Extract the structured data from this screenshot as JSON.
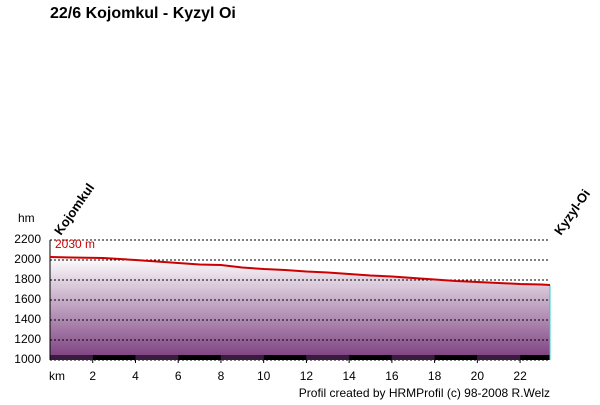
{
  "chart_data": {
    "type": "area",
    "title": "22/6 Kojomkul - Kyzyl Oi",
    "x_label": "km",
    "y_label": "hm",
    "credit": "Profil created by HRMProfil (c) 98-2008 R.Welz",
    "locations": [
      {
        "x": 0,
        "label": "Kojomkul"
      },
      {
        "x": 23.4,
        "label": "Kyzyl-Oi"
      }
    ],
    "x": [
      0,
      1,
      2.5,
      4,
      5,
      6,
      7,
      8,
      9,
      10,
      11,
      12,
      13,
      14,
      15,
      16,
      17,
      18,
      19,
      20,
      21,
      22,
      23,
      23.4
    ],
    "series": [
      {
        "name": "Elevation",
        "color": "#cc0000",
        "values": [
          2030,
          2025,
          2020,
          2000,
          1985,
          1970,
          1955,
          1950,
          1925,
          1910,
          1900,
          1885,
          1875,
          1860,
          1845,
          1835,
          1820,
          1805,
          1790,
          1780,
          1770,
          1760,
          1755,
          1750
        ],
        "value_labels": [
          "2030 m",
          null,
          null,
          null,
          null,
          null,
          null,
          null,
          null,
          null,
          null,
          null,
          null,
          null,
          null,
          null,
          null,
          null,
          null,
          null,
          null,
          null,
          null,
          null
        ]
      }
    ],
    "xlim": [
      0,
      23.4
    ],
    "xticks": [
      2,
      4,
      6,
      8,
      10,
      12,
      14,
      16,
      18,
      20,
      22
    ],
    "ylim": [
      1000,
      2200
    ],
    "yticks": [
      1000,
      1200,
      1400,
      1600,
      1800,
      2000,
      2200
    ],
    "grid": true
  }
}
